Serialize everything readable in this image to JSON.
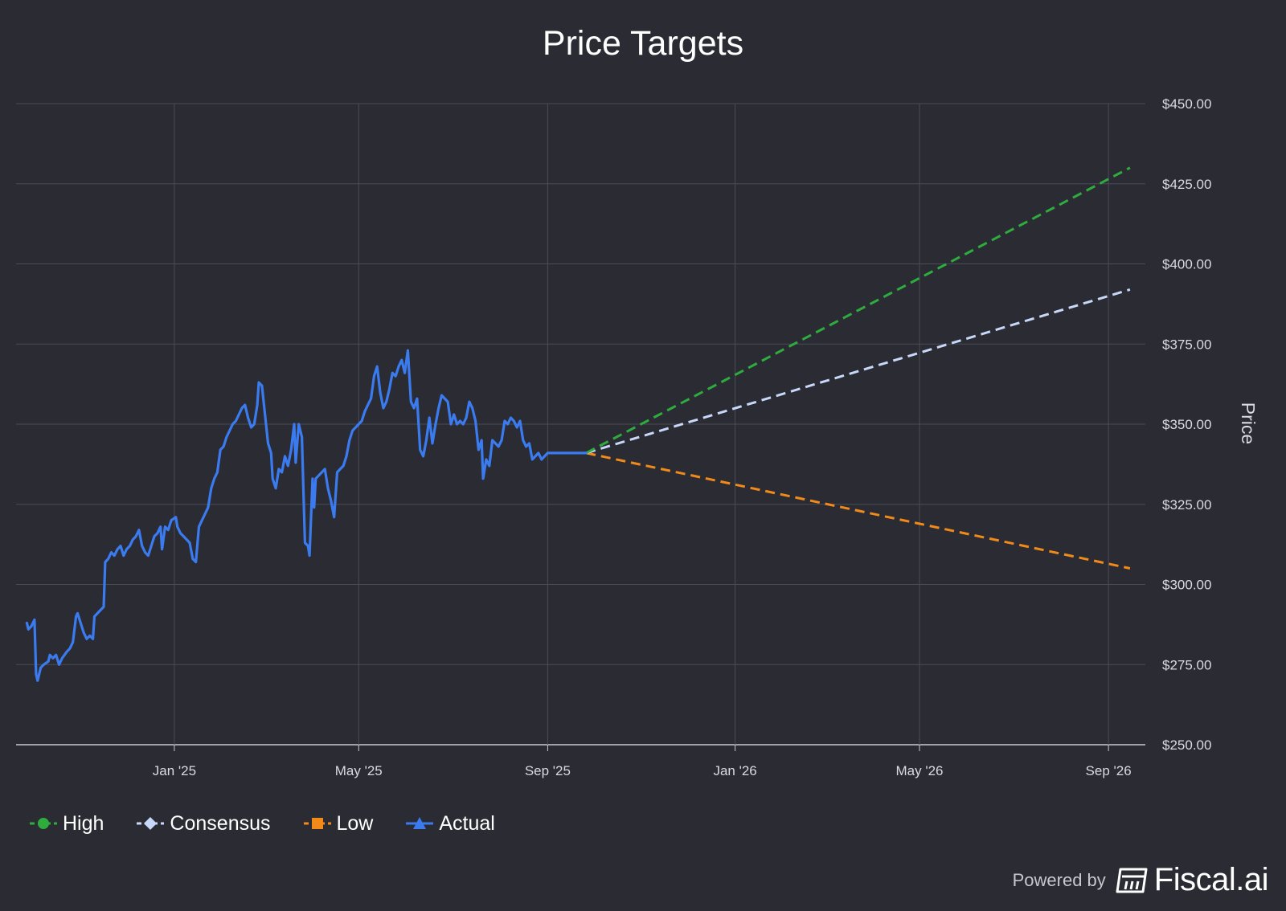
{
  "chart_data": {
    "type": "line",
    "title": "Price Targets",
    "xlabel": "",
    "ylabel": "Price",
    "y_ticks": [
      "$250.00",
      "$275.00",
      "$300.00",
      "$325.00",
      "$350.00",
      "$375.00",
      "$400.00",
      "$425.00",
      "$450.00"
    ],
    "x_ticks": [
      {
        "label": "Jan '25",
        "date": "2025-01-01"
      },
      {
        "label": "May '25",
        "date": "2025-05-01"
      },
      {
        "label": "Sep '25",
        "date": "2025-09-01"
      },
      {
        "label": "Jan '26",
        "date": "2026-01-01"
      },
      {
        "label": "May '26",
        "date": "2026-05-01"
      },
      {
        "label": "Sep '26",
        "date": "2026-09-01"
      }
    ],
    "xlim": [
      "2024-09-20",
      "2026-09-25"
    ],
    "ylim": [
      250,
      450
    ],
    "grid": true,
    "legend_position": "bottom-left",
    "series": [
      {
        "name": "High",
        "color": "#2eac3e",
        "dash": true,
        "marker": "circle",
        "points": [
          [
            "2025-09-26",
            341
          ],
          [
            "2026-09-15",
            430
          ]
        ]
      },
      {
        "name": "Consensus",
        "color": "#c8d8f8",
        "dash": true,
        "marker": "diamond",
        "points": [
          [
            "2025-09-26",
            341
          ],
          [
            "2026-09-15",
            392
          ]
        ]
      },
      {
        "name": "Low",
        "color": "#f28a1a",
        "dash": true,
        "marker": "square",
        "points": [
          [
            "2025-09-26",
            341
          ],
          [
            "2026-09-15",
            305
          ]
        ]
      },
      {
        "name": "Actual",
        "color": "#3b7bf0",
        "dash": false,
        "marker": "triangle",
        "points": [
          [
            "2024-09-27",
            288
          ],
          [
            "2024-09-28",
            286
          ],
          [
            "2024-09-30",
            287
          ],
          [
            "2024-10-02",
            289
          ],
          [
            "2024-10-03",
            272
          ],
          [
            "2024-10-04",
            270
          ],
          [
            "2024-10-06",
            274
          ],
          [
            "2024-10-08",
            275
          ],
          [
            "2024-10-11",
            276
          ],
          [
            "2024-10-12",
            278
          ],
          [
            "2024-10-14",
            277
          ],
          [
            "2024-10-16",
            278
          ],
          [
            "2024-10-18",
            275
          ],
          [
            "2024-10-20",
            277
          ],
          [
            "2024-10-23",
            279
          ],
          [
            "2024-10-25",
            280
          ],
          [
            "2024-10-27",
            282
          ],
          [
            "2024-10-29",
            290
          ],
          [
            "2024-10-30",
            291
          ],
          [
            "2024-11-01",
            288
          ],
          [
            "2024-11-03",
            285
          ],
          [
            "2024-11-05",
            283
          ],
          [
            "2024-11-07",
            284
          ],
          [
            "2024-11-09",
            283
          ],
          [
            "2024-11-10",
            290
          ],
          [
            "2024-11-12",
            291
          ],
          [
            "2024-11-14",
            292
          ],
          [
            "2024-11-16",
            293
          ],
          [
            "2024-11-17",
            307
          ],
          [
            "2024-11-19",
            308
          ],
          [
            "2024-11-21",
            310
          ],
          [
            "2024-11-23",
            309
          ],
          [
            "2024-11-25",
            311
          ],
          [
            "2024-11-27",
            312
          ],
          [
            "2024-11-29",
            309
          ],
          [
            "2024-12-01",
            311
          ],
          [
            "2024-12-03",
            312
          ],
          [
            "2024-12-05",
            314
          ],
          [
            "2024-12-07",
            315
          ],
          [
            "2024-12-09",
            317
          ],
          [
            "2024-12-11",
            312
          ],
          [
            "2024-12-13",
            310
          ],
          [
            "2024-12-15",
            309
          ],
          [
            "2024-12-17",
            312
          ],
          [
            "2024-12-19",
            315
          ],
          [
            "2024-12-21",
            316
          ],
          [
            "2024-12-23",
            318
          ],
          [
            "2024-12-24",
            311
          ],
          [
            "2024-12-26",
            318
          ],
          [
            "2024-12-28",
            317
          ],
          [
            "2024-12-30",
            320
          ],
          [
            "2025-01-02",
            321
          ],
          [
            "2025-01-03",
            318
          ],
          [
            "2025-01-05",
            316
          ],
          [
            "2025-01-07",
            315
          ],
          [
            "2025-01-09",
            314
          ],
          [
            "2025-01-11",
            313
          ],
          [
            "2025-01-13",
            308
          ],
          [
            "2025-01-15",
            307
          ],
          [
            "2025-01-17",
            318
          ],
          [
            "2025-01-19",
            320
          ],
          [
            "2025-01-21",
            322
          ],
          [
            "2025-01-23",
            324
          ],
          [
            "2025-01-25",
            330
          ],
          [
            "2025-01-27",
            333
          ],
          [
            "2025-01-29",
            335
          ],
          [
            "2025-01-31",
            342
          ],
          [
            "2025-02-02",
            343
          ],
          [
            "2025-02-04",
            346
          ],
          [
            "2025-02-06",
            348
          ],
          [
            "2025-02-08",
            350
          ],
          [
            "2025-02-10",
            351
          ],
          [
            "2025-02-12",
            353
          ],
          [
            "2025-02-14",
            355
          ],
          [
            "2025-02-16",
            356
          ],
          [
            "2025-02-18",
            352
          ],
          [
            "2025-02-20",
            349
          ],
          [
            "2025-02-22",
            350
          ],
          [
            "2025-02-24",
            356
          ],
          [
            "2025-02-25",
            363
          ],
          [
            "2025-02-27",
            362
          ],
          [
            "2025-03-01",
            353
          ],
          [
            "2025-03-03",
            344
          ],
          [
            "2025-03-05",
            341
          ],
          [
            "2025-03-06",
            333
          ],
          [
            "2025-03-08",
            330
          ],
          [
            "2025-03-10",
            336
          ],
          [
            "2025-03-12",
            335
          ],
          [
            "2025-03-14",
            340
          ],
          [
            "2025-03-16",
            337
          ],
          [
            "2025-03-18",
            342
          ],
          [
            "2025-03-20",
            350
          ],
          [
            "2025-03-21",
            338
          ],
          [
            "2025-03-23",
            350
          ],
          [
            "2025-03-25",
            346
          ],
          [
            "2025-03-27",
            313
          ],
          [
            "2025-03-29",
            312
          ],
          [
            "2025-03-30",
            309
          ],
          [
            "2025-04-01",
            333
          ],
          [
            "2025-04-02",
            324
          ],
          [
            "2025-04-03",
            333
          ],
          [
            "2025-04-05",
            334
          ],
          [
            "2025-04-07",
            335
          ],
          [
            "2025-04-09",
            336
          ],
          [
            "2025-04-11",
            330
          ],
          [
            "2025-04-13",
            326
          ],
          [
            "2025-04-15",
            321
          ],
          [
            "2025-04-17",
            335
          ],
          [
            "2025-04-19",
            336
          ],
          [
            "2025-04-21",
            337
          ],
          [
            "2025-04-23",
            340
          ],
          [
            "2025-04-25",
            345
          ],
          [
            "2025-04-27",
            348
          ],
          [
            "2025-04-29",
            349
          ],
          [
            "2025-05-01",
            350
          ],
          [
            "2025-05-03",
            351
          ],
          [
            "2025-05-05",
            354
          ],
          [
            "2025-05-07",
            356
          ],
          [
            "2025-05-09",
            358
          ],
          [
            "2025-05-11",
            365
          ],
          [
            "2025-05-13",
            368
          ],
          [
            "2025-05-15",
            360
          ],
          [
            "2025-05-17",
            355
          ],
          [
            "2025-05-19",
            357
          ],
          [
            "2025-05-21",
            361
          ],
          [
            "2025-05-23",
            366
          ],
          [
            "2025-05-25",
            365
          ],
          [
            "2025-05-27",
            368
          ],
          [
            "2025-05-29",
            370
          ],
          [
            "2025-05-31",
            366
          ],
          [
            "2025-06-02",
            373
          ],
          [
            "2025-06-04",
            357
          ],
          [
            "2025-06-06",
            355
          ],
          [
            "2025-06-08",
            358
          ],
          [
            "2025-06-10",
            342
          ],
          [
            "2025-06-12",
            340
          ],
          [
            "2025-06-14",
            345
          ],
          [
            "2025-06-16",
            352
          ],
          [
            "2025-06-18",
            344
          ],
          [
            "2025-06-20",
            350
          ],
          [
            "2025-06-22",
            355
          ],
          [
            "2025-06-24",
            359
          ],
          [
            "2025-06-26",
            358
          ],
          [
            "2025-06-28",
            357
          ],
          [
            "2025-06-30",
            350
          ],
          [
            "2025-07-02",
            353
          ],
          [
            "2025-07-04",
            350
          ],
          [
            "2025-07-06",
            351
          ],
          [
            "2025-07-08",
            350
          ],
          [
            "2025-07-10",
            352
          ],
          [
            "2025-07-12",
            357
          ],
          [
            "2025-07-14",
            355
          ],
          [
            "2025-07-16",
            351
          ],
          [
            "2025-07-18",
            342
          ],
          [
            "2025-07-20",
            345
          ],
          [
            "2025-07-21",
            333
          ],
          [
            "2025-07-23",
            339
          ],
          [
            "2025-07-25",
            337
          ],
          [
            "2025-07-27",
            345
          ],
          [
            "2025-07-29",
            344
          ],
          [
            "2025-07-31",
            343
          ],
          [
            "2025-08-02",
            345
          ],
          [
            "2025-08-04",
            351
          ],
          [
            "2025-08-06",
            350
          ],
          [
            "2025-08-08",
            352
          ],
          [
            "2025-08-10",
            351
          ],
          [
            "2025-08-12",
            349
          ],
          [
            "2025-08-14",
            351
          ],
          [
            "2025-08-16",
            345
          ],
          [
            "2025-08-18",
            343
          ],
          [
            "2025-08-20",
            344
          ],
          [
            "2025-08-22",
            339
          ],
          [
            "2025-08-24",
            340
          ],
          [
            "2025-08-26",
            341
          ],
          [
            "2025-08-28",
            339
          ],
          [
            "2025-08-30",
            340
          ],
          [
            "2025-09-01",
            341
          ],
          [
            "2025-09-26",
            341
          ]
        ]
      }
    ]
  },
  "branding": {
    "powered_by": "Powered by",
    "brand": "Fiscal.ai"
  },
  "colors": {
    "background": "#2a2b33",
    "grid": "#4a4c56",
    "axis": "#c8cad0",
    "text": "#d9dbe0"
  }
}
